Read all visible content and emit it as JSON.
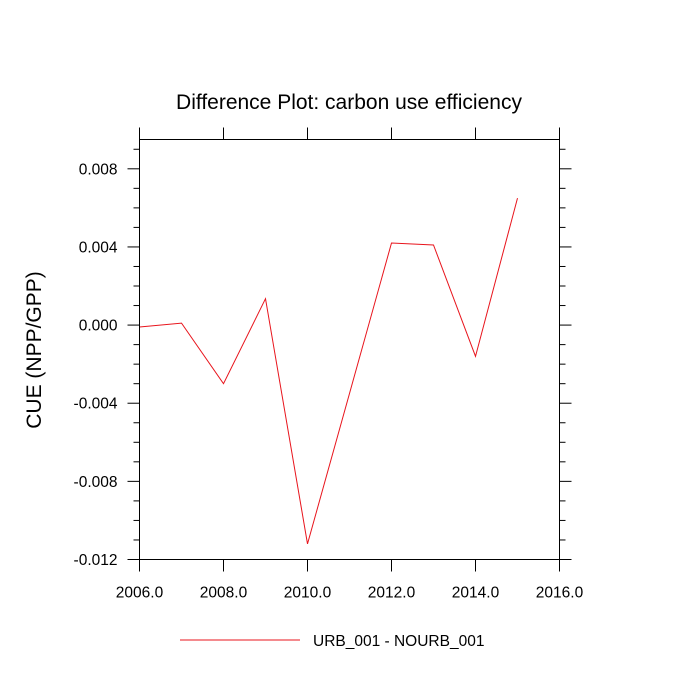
{
  "chart_data": {
    "type": "line",
    "title": "Difference Plot: carbon use efficiency",
    "xlabel": "",
    "ylabel": "CUE  (NPP/GPP)",
    "xlim": [
      2006.0,
      2016.0
    ],
    "ylim": [
      -0.012,
      0.0095
    ],
    "x_ticks": [
      2006.0,
      2008.0,
      2010.0,
      2012.0,
      2014.0,
      2016.0
    ],
    "x_tick_labels": [
      "2006.0",
      "2008.0",
      "2010.0",
      "2012.0",
      "2014.0",
      "2016.0"
    ],
    "y_ticks": [
      -0.012,
      -0.008,
      -0.004,
      0.0,
      0.004,
      0.008
    ],
    "y_tick_labels": [
      "-0.012",
      "-0.008",
      "-0.004",
      "0.000",
      "0.004",
      "0.008"
    ],
    "grid": false,
    "legend_position": "bottom",
    "series": [
      {
        "name": "URB_001 - NOURB_001",
        "color": "#e8141c",
        "x": [
          2006,
          2007,
          2008,
          2009,
          2010,
          2011,
          2012,
          2013,
          2014,
          2015
        ],
        "y": [
          -0.0001,
          0.0001,
          -0.003,
          0.00135,
          -0.0112,
          -0.0035,
          0.0042,
          0.0041,
          -0.0016,
          0.0065
        ]
      }
    ]
  }
}
